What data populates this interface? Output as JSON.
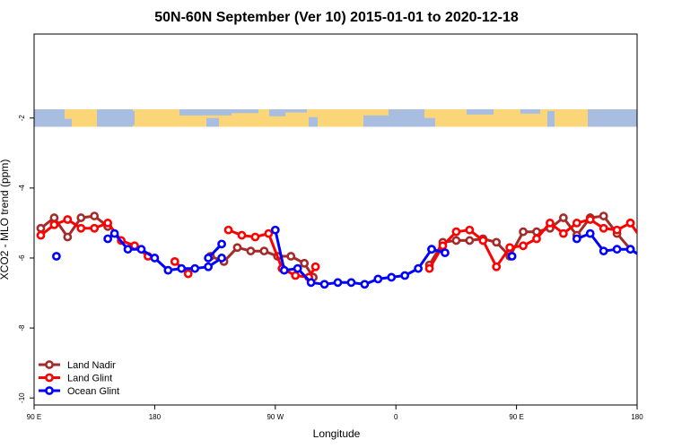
{
  "chart_data": {
    "type": "line",
    "title": "50N-60N September (Ver 10)   2015-01-01 to 2020-12-18",
    "xlabel": "Longitude",
    "ylabel": "XCO2 - MLO trend (ppm)",
    "xlim": [
      -90,
      180
    ],
    "ylim": [
      -10.2,
      0.4
    ],
    "x_ticks": [
      {
        "value": -90,
        "label": "90 E"
      },
      {
        "value": -36,
        "label": "180"
      },
      {
        "value": 18,
        "label": "90 W"
      },
      {
        "value": 72,
        "label": "0"
      },
      {
        "value": 126,
        "label": "90 E"
      },
      {
        "value": 180,
        "label": "180"
      }
    ],
    "y_ticks": [
      {
        "value": -2,
        "label": "-2"
      },
      {
        "value": -4,
        "label": "-4"
      },
      {
        "value": -6,
        "label": "-6"
      },
      {
        "value": -8,
        "label": "-8"
      },
      {
        "value": -10,
        "label": "-10"
      }
    ],
    "map_strip": {
      "y_top": -1.75,
      "y_bottom": -2.25,
      "ocean_color": "#A9BDE0",
      "land_color": "#FBD679"
    },
    "legend_position": "bottom-left",
    "series": [
      {
        "name": "Land Nadir",
        "color": "#A52A2A",
        "segments": [
          {
            "x": [
              -87,
              -81,
              -75,
              -69,
              -63,
              -57
            ],
            "y": [
              -5.15,
              -4.85,
              -5.4,
              -4.85,
              -4.8,
              -5.1
            ]
          },
          {
            "x": [
              -11,
              -5,
              1,
              7,
              13,
              19,
              25,
              31,
              35
            ],
            "y": [
              -5.95,
              -6.1,
              -5.7,
              -5.8,
              -5.8,
              -5.95,
              -5.95,
              -6.15,
              -6.55
            ]
          },
          {
            "x": [
              87,
              93,
              99,
              105,
              111,
              117,
              123,
              129,
              135,
              141,
              147,
              153,
              159
            ],
            "y": [
              -6.2,
              -5.55,
              -5.5,
              -5.5,
              -5.45,
              -5.55,
              -5.95,
              -5.25,
              -5.25,
              -5.15,
              -4.85,
              -5.35,
              -4.85
            ]
          },
          {
            "x": [
              159,
              165,
              171,
              177
            ],
            "y": [
              -4.85,
              -4.8,
              -5.3,
              -5.75
            ]
          }
        ]
      },
      {
        "name": "Land Glint",
        "color": "#FF0000",
        "segments": [
          {
            "x": [
              -87,
              -81,
              -75,
              -69,
              -63,
              -57,
              -51,
              -45,
              -39
            ],
            "y": [
              -5.35,
              -5.05,
              -4.9,
              -5.15,
              -5.15,
              -5.0,
              -5.5,
              -5.65,
              -5.95
            ]
          },
          {
            "x": [
              -27,
              -21
            ],
            "y": [
              -6.1,
              -6.45
            ]
          },
          {
            "x": [
              -3,
              3,
              9,
              15,
              21,
              27,
              33,
              36
            ],
            "y": [
              -5.2,
              -5.35,
              -5.4,
              -5.3,
              -6.3,
              -6.5,
              -6.55,
              -6.25
            ]
          },
          {
            "x": [
              87,
              93,
              99,
              105,
              111,
              117,
              123,
              129,
              135,
              141,
              147,
              153,
              159,
              165,
              171,
              177
            ],
            "y": [
              -6.3,
              -5.65,
              -5.25,
              -5.2,
              -5.5,
              -6.25,
              -5.7,
              -5.65,
              -5.45,
              -5.0,
              -5.3,
              -5.0,
              -4.9,
              -5.15,
              -5.2,
              -5.0
            ]
          },
          {
            "x": [
              177,
              183,
              186
            ],
            "y": [
              -5.0,
              -5.55,
              -5.95
            ]
          }
        ]
      },
      {
        "name": "Ocean Glint",
        "color": "#0000FF",
        "segments": [
          {
            "x": [
              -80
            ],
            "y": [
              -5.95
            ]
          },
          {
            "x": [
              -57,
              -54,
              -48,
              -42,
              -36,
              -30,
              -24,
              -18,
              -12,
              -6
            ],
            "y": [
              -5.45,
              -5.3,
              -5.75,
              -5.75,
              -6.0,
              -6.35,
              -6.3,
              -6.3,
              -6.25,
              -6.0
            ]
          },
          {
            "x": [
              -12,
              -6
            ],
            "y": [
              -6.0,
              -5.6
            ]
          },
          {
            "x": [
              18,
              22,
              28,
              34,
              40,
              46,
              52,
              58,
              64,
              70,
              76,
              82,
              88
            ],
            "y": [
              -5.2,
              -6.35,
              -6.3,
              -6.7,
              -6.75,
              -6.7,
              -6.7,
              -6.75,
              -6.6,
              -6.55,
              -6.5,
              -6.3,
              -5.75
            ]
          },
          {
            "x": [
              88,
              94
            ],
            "y": [
              -5.75,
              -5.85
            ]
          },
          {
            "x": [
              124
            ],
            "y": [
              -5.95
            ]
          },
          {
            "x": [
              153,
              159,
              165,
              171,
              177,
              183,
              189
            ],
            "y": [
              -5.45,
              -5.3,
              -5.8,
              -5.75,
              -5.75,
              -6.0,
              -6.0
            ]
          }
        ]
      }
    ]
  }
}
